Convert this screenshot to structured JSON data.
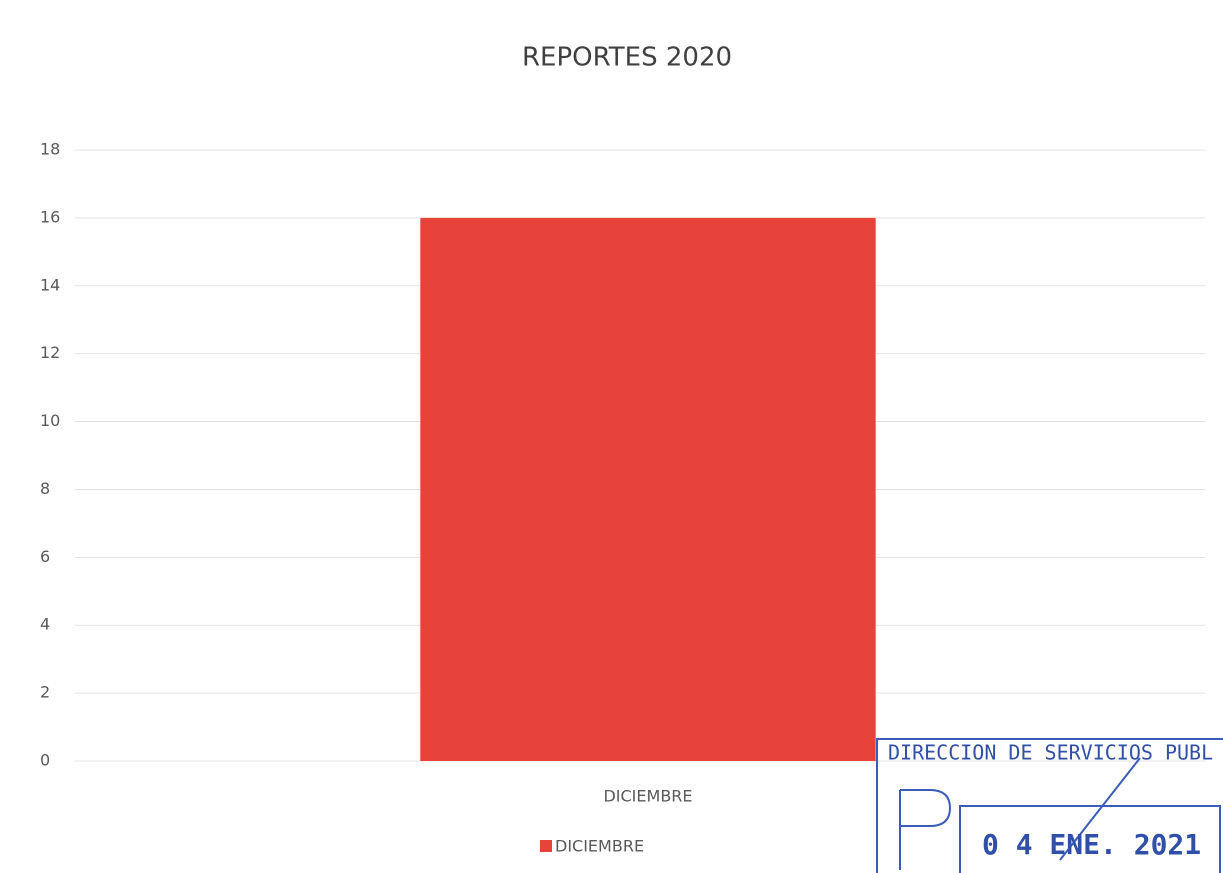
{
  "chart_data": {
    "type": "bar",
    "title": "REPORTES 2020",
    "categories": [
      "DICIEMBRE"
    ],
    "series": [
      {
        "name": "DICIEMBRE",
        "color": "#e8433b",
        "values": [
          16
        ]
      }
    ],
    "ylim": [
      0,
      18
    ],
    "yticks": [
      0,
      2,
      4,
      6,
      8,
      10,
      12,
      14,
      16,
      18
    ],
    "grid": true,
    "legend": "bottom"
  },
  "stamp": {
    "header": "DIRECCION DE SERVICIOS PUBL",
    "date": "0 4 ENE. 2021"
  }
}
